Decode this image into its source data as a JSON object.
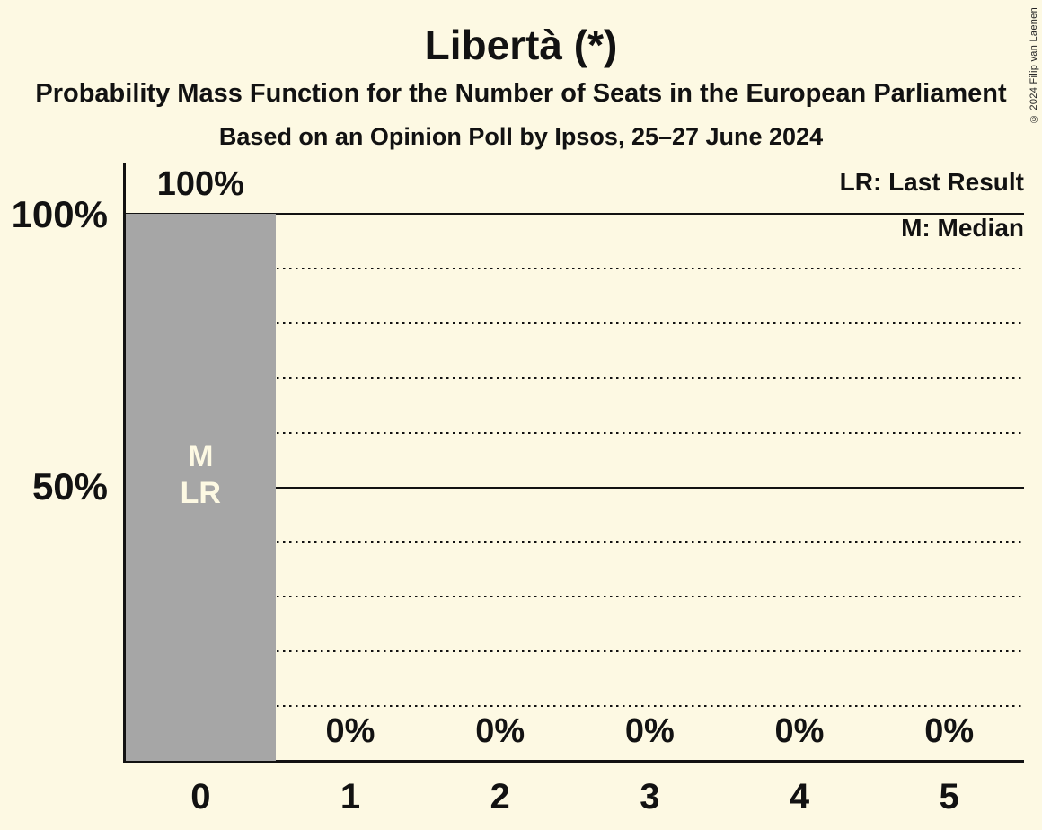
{
  "copyright": "© 2024 Filip van Laenen",
  "chart_data": {
    "type": "bar",
    "title": "Libertà (*)",
    "subtitle": "Probability Mass Function for the Number of Seats in the European Parliament",
    "poll_line": "Based on an Opinion Poll by Ipsos, 25–27 June 2024",
    "categories": [
      "0",
      "1",
      "2",
      "3",
      "4",
      "5"
    ],
    "values": [
      100,
      0,
      0,
      0,
      0,
      0
    ],
    "value_labels": [
      "100%",
      "0%",
      "0%",
      "0%",
      "0%",
      "0%"
    ],
    "ylim": [
      0,
      100
    ],
    "ytick_labels": {
      "p100": "100%",
      "p50": "50%"
    },
    "solid_gridlines_pct": [
      100,
      50
    ],
    "dotted_gridlines_pct": [
      90,
      80,
      70,
      60,
      40,
      30,
      20,
      10
    ],
    "legend": {
      "last_result": "LR: Last Result",
      "median": "M: Median"
    },
    "bar_annotations": [
      "M",
      "LR"
    ],
    "annotated_bar_index": 0,
    "legend_position": "top-right",
    "grid": "dotted-every-10pct",
    "colors": {
      "background": "#fdf9e3",
      "bar": "#a6a6a6",
      "text": "#121212",
      "bar_label_text": "#fdf9e3"
    }
  }
}
